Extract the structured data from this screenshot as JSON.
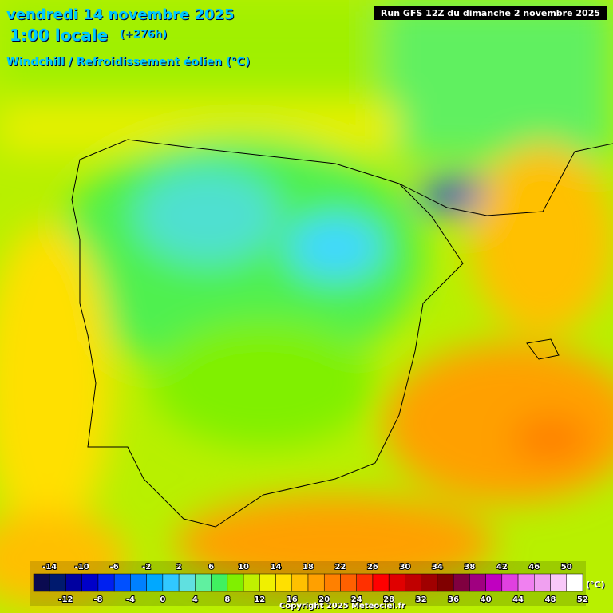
{
  "header": {
    "date": "vendredi 14 novembre 2025",
    "time": "1:00 locale",
    "lead": "(+276h)",
    "parameter": "Windchill / Refroidissement éolien (°C)",
    "run": "Run GFS 12Z du dimanche 2 novembre 2025"
  },
  "legend": {
    "unit": "(°C)",
    "levels": [
      -14,
      -12,
      -10,
      -8,
      -6,
      -4,
      -2,
      0,
      2,
      4,
      6,
      8,
      10,
      12,
      14,
      16,
      18,
      20,
      22,
      24,
      26,
      28,
      30,
      32,
      34,
      36,
      38,
      40,
      42,
      44,
      46,
      48,
      50,
      52
    ],
    "colors": [
      "#0a0a50",
      "#001a6e",
      "#0000a0",
      "#0000c8",
      "#0020f0",
      "#0050ff",
      "#0080ff",
      "#00a8ff",
      "#30c8ff",
      "#60e0e0",
      "#60f0a0",
      "#40f060",
      "#80f000",
      "#c0f000",
      "#f0f000",
      "#ffe000",
      "#ffc000",
      "#ffa000",
      "#ff8000",
      "#ff6000",
      "#ff3000",
      "#ff0000",
      "#e00000",
      "#c00000",
      "#a00000",
      "#800000",
      "#800040",
      "#a00080",
      "#c000c0",
      "#e040e0",
      "#f080f0",
      "#f0a0f0",
      "#f8c8f8",
      "#ffffff"
    ]
  },
  "footer": {
    "copyright": "Copyright 2025 Meteociel.fr"
  }
}
